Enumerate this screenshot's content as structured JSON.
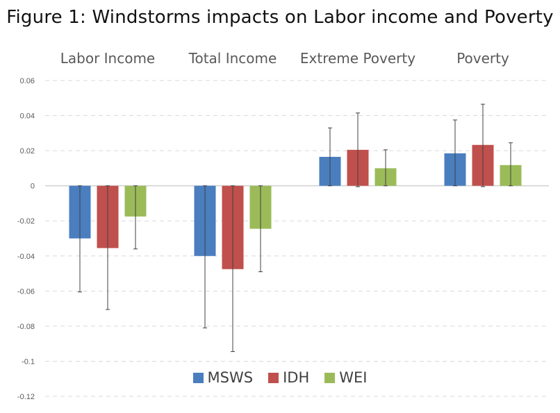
{
  "title": "Figure 1: Windstorms impacts on Labor income and Poverty",
  "chart_data": {
    "type": "bar",
    "title": "Figure 1: Windstorms impacts on Labor income and Poverty",
    "categories": [
      "Labor Income",
      "Total Income",
      "Extreme Poverty",
      "Poverty"
    ],
    "series": [
      {
        "name": "MSWS",
        "color": "#4a7ebf",
        "values": [
          -0.03,
          -0.04,
          0.0165,
          0.0185
        ],
        "error_high": [
          0.0,
          0.0,
          0.033,
          0.0375
        ],
        "error_low": [
          -0.0605,
          -0.081,
          0.0,
          0.0
        ]
      },
      {
        "name": "IDH",
        "color": "#c0504d",
        "values": [
          -0.0355,
          -0.0475,
          0.0205,
          0.0233
        ],
        "error_high": [
          0.0,
          0.0,
          0.0415,
          0.0465
        ],
        "error_low": [
          -0.0705,
          -0.0945,
          -0.0005,
          -0.0005
        ]
      },
      {
        "name": "WEI",
        "color": "#9bbb59",
        "values": [
          -0.0175,
          -0.0245,
          0.01,
          0.0118
        ],
        "error_high": [
          0.0,
          0.0,
          0.0205,
          0.0245
        ],
        "error_low": [
          -0.036,
          -0.049,
          0.0,
          0.0
        ]
      }
    ],
    "y_ticks": [
      "0.06",
      "0.04",
      "0.02",
      "0",
      "-0.02",
      "-0.04",
      "-0.06",
      "-0.08",
      "-0.1",
      "-0.12"
    ],
    "ylim": [
      -0.12,
      0.06
    ],
    "grid": true,
    "legend_position": "bottom-center",
    "xlabel": "",
    "ylabel": ""
  }
}
